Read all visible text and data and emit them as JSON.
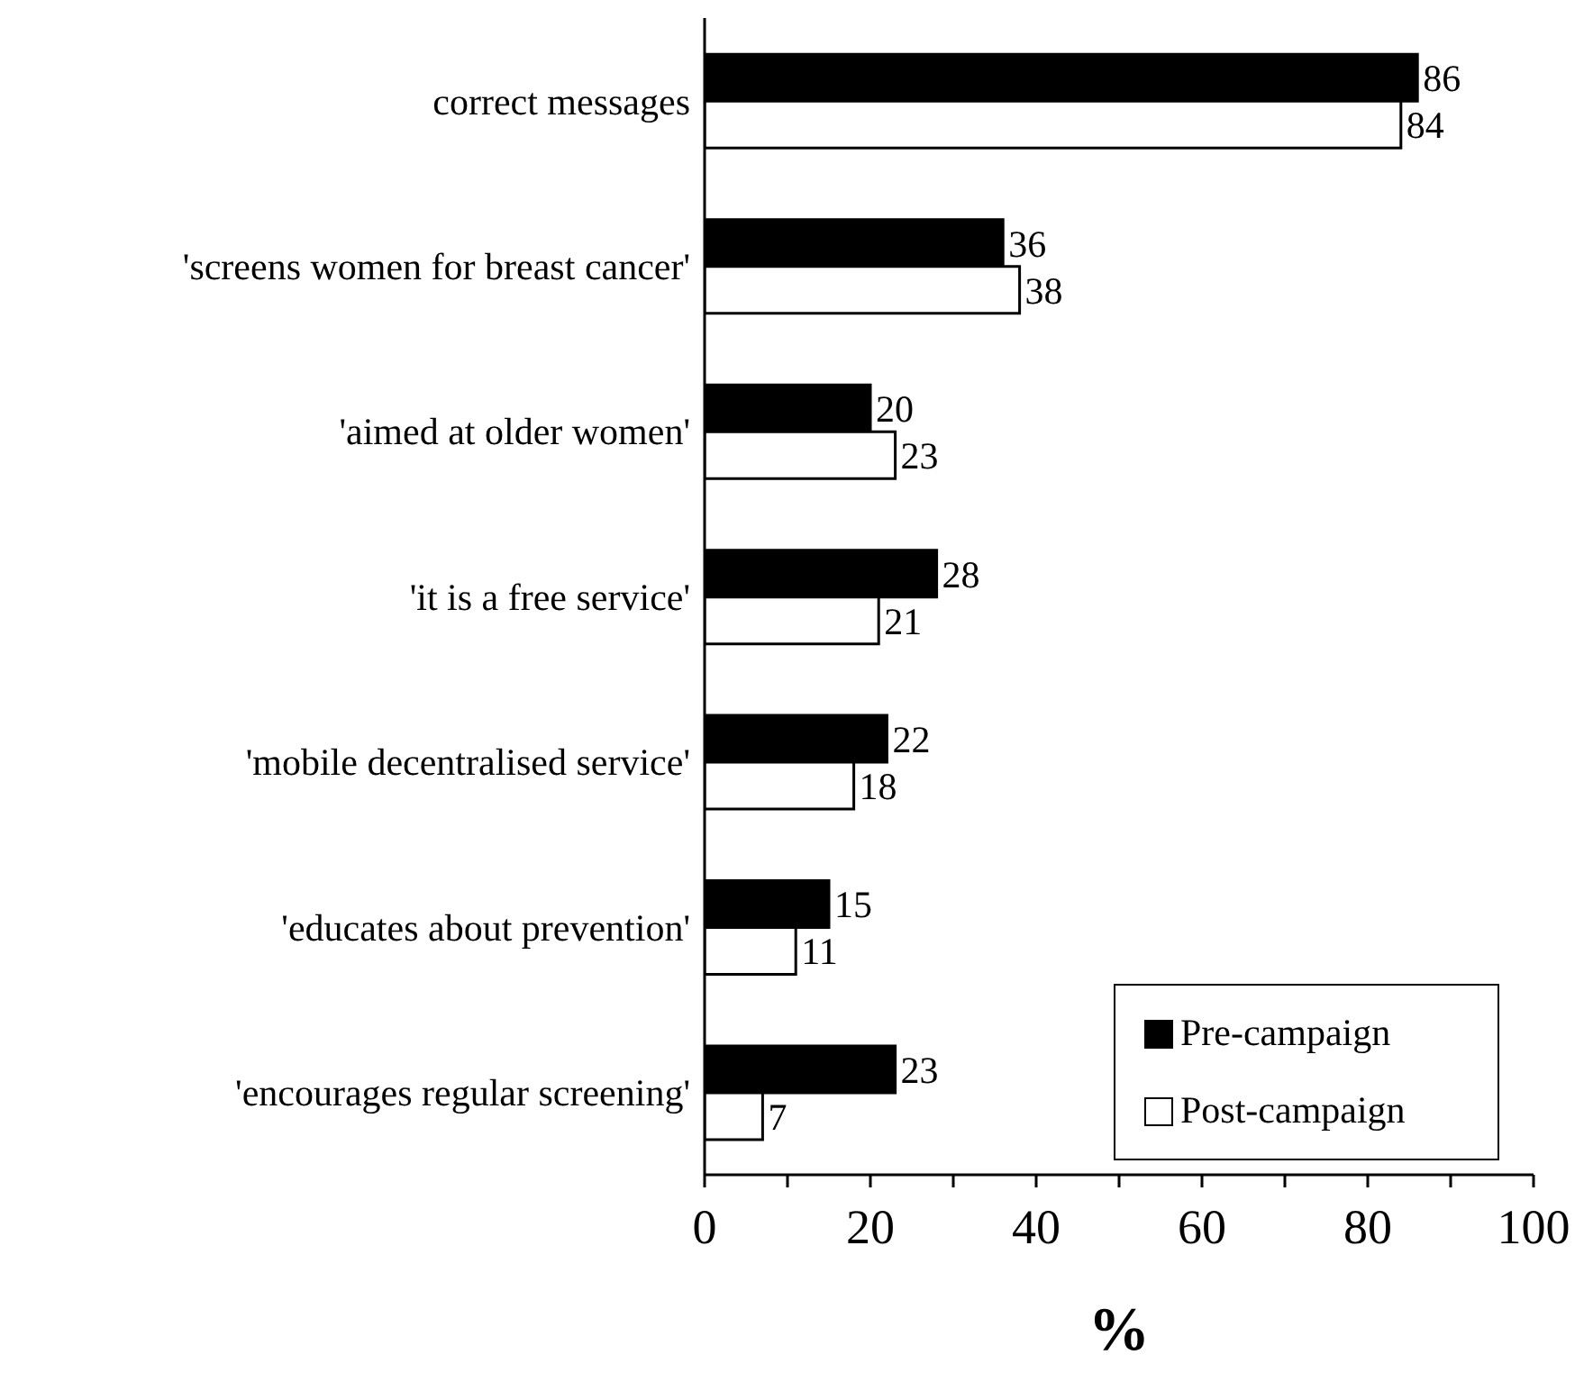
{
  "chart_data": {
    "type": "bar",
    "orientation": "horizontal",
    "xlabel": "%",
    "categories": [
      "correct messages",
      "'screens women for breast cancer'",
      "'aimed at older women'",
      "'it is a free service'",
      "'mobile decentralised service'",
      "'educates about prevention'",
      "'encourages regular screening'"
    ],
    "series": [
      {
        "name": "Pre-campaign",
        "color": "#000000",
        "values": [
          86,
          36,
          20,
          28,
          22,
          15,
          23
        ]
      },
      {
        "name": "Post-campaign",
        "color": "#ffffff",
        "values": [
          84,
          38,
          23,
          21,
          18,
          11,
          7
        ]
      }
    ],
    "xlim": [
      0,
      100
    ],
    "xticks": [
      0,
      {
        "value": 10,
        "label": null
      },
      20,
      {
        "value": 30,
        "label": null
      },
      40,
      {
        "value": 50,
        "label": null
      },
      60,
      {
        "value": 70,
        "label": null
      },
      80,
      {
        "value": 90,
        "label": null
      },
      100
    ],
    "data_labels": true,
    "grid": false,
    "legend": "bottom right"
  }
}
